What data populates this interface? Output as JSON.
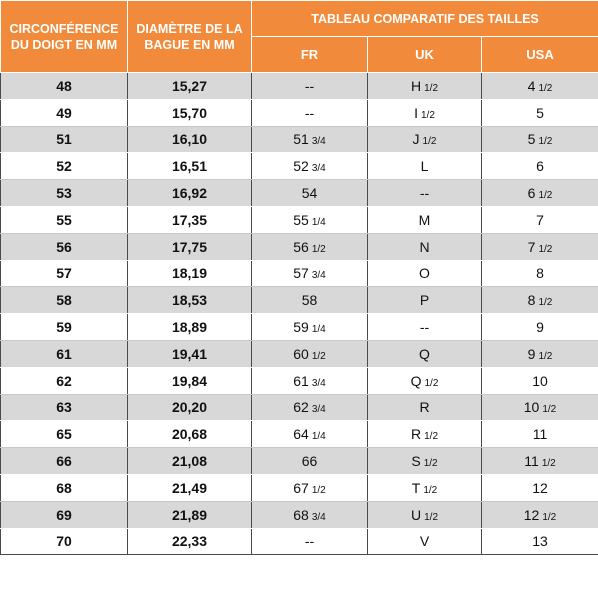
{
  "header": {
    "circumference": "CIRCONFÉRENCE DU DOIGT EN MM",
    "diameter": "DIAMÈTRE DE LA BAGUE EN MM",
    "comparison": "TABLEAU COMPARATIF DES TAILLES",
    "fr": "FR",
    "uk": "UK",
    "usa": "USA"
  },
  "rows": [
    {
      "circ": "48",
      "diam": "15,27",
      "fr": "--",
      "fr_frac": "",
      "uk": "H",
      "uk_frac": "1/2",
      "usa": "4",
      "usa_frac": "1/2"
    },
    {
      "circ": "49",
      "diam": "15,70",
      "fr": "--",
      "fr_frac": "",
      "uk": "I",
      "uk_frac": "1/2",
      "usa": "5",
      "usa_frac": ""
    },
    {
      "circ": "51",
      "diam": "16,10",
      "fr": "51",
      "fr_frac": "3/4",
      "uk": "J",
      "uk_frac": "1/2",
      "usa": "5",
      "usa_frac": "1/2"
    },
    {
      "circ": "52",
      "diam": "16,51",
      "fr": "52",
      "fr_frac": "3/4",
      "uk": "L",
      "uk_frac": "",
      "usa": "6",
      "usa_frac": ""
    },
    {
      "circ": "53",
      "diam": "16,92",
      "fr": "54",
      "fr_frac": "",
      "uk": "--",
      "uk_frac": "",
      "usa": "6",
      "usa_frac": "1/2"
    },
    {
      "circ": "55",
      "diam": "17,35",
      "fr": "55",
      "fr_frac": "1/4",
      "uk": "M",
      "uk_frac": "",
      "usa": "7",
      "usa_frac": ""
    },
    {
      "circ": "56",
      "diam": "17,75",
      "fr": "56",
      "fr_frac": "1/2",
      "uk": "N",
      "uk_frac": "",
      "usa": "7",
      "usa_frac": "1/2"
    },
    {
      "circ": "57",
      "diam": "18,19",
      "fr": "57",
      "fr_frac": "3/4",
      "uk": "O",
      "uk_frac": "",
      "usa": "8",
      "usa_frac": ""
    },
    {
      "circ": "58",
      "diam": "18,53",
      "fr": "58",
      "fr_frac": "",
      "uk": "P",
      "uk_frac": "",
      "usa": "8",
      "usa_frac": "1/2"
    },
    {
      "circ": "59",
      "diam": "18,89",
      "fr": "59",
      "fr_frac": "1/4",
      "uk": "--",
      "uk_frac": "",
      "usa": "9",
      "usa_frac": ""
    },
    {
      "circ": "61",
      "diam": "19,41",
      "fr": "60",
      "fr_frac": "1/2",
      "uk": "Q",
      "uk_frac": "",
      "usa": "9",
      "usa_frac": "1/2"
    },
    {
      "circ": "62",
      "diam": "19,84",
      "fr": "61",
      "fr_frac": "3/4",
      "uk": "Q",
      "uk_frac": "1/2",
      "usa": "10",
      "usa_frac": ""
    },
    {
      "circ": "63",
      "diam": "20,20",
      "fr": "62",
      "fr_frac": "3/4",
      "uk": "R",
      "uk_frac": "",
      "usa": "10",
      "usa_frac": "1/2"
    },
    {
      "circ": "65",
      "diam": "20,68",
      "fr": "64",
      "fr_frac": "1/4",
      "uk": "R",
      "uk_frac": "1/2",
      "usa": "11",
      "usa_frac": ""
    },
    {
      "circ": "66",
      "diam": "21,08",
      "fr": "66",
      "fr_frac": "",
      "uk": "S",
      "uk_frac": "1/2",
      "usa": "11",
      "usa_frac": "1/2"
    },
    {
      "circ": "68",
      "diam": "21,49",
      "fr": "67",
      "fr_frac": "1/2",
      "uk": "T",
      "uk_frac": "1/2",
      "usa": "12",
      "usa_frac": ""
    },
    {
      "circ": "69",
      "diam": "21,89",
      "fr": "68",
      "fr_frac": "3/4",
      "uk": "U",
      "uk_frac": "1/2",
      "usa": "12",
      "usa_frac": "1/2"
    },
    {
      "circ": "70",
      "diam": "22,33",
      "fr": "--",
      "fr_frac": "",
      "uk": "V",
      "uk_frac": "",
      "usa": "13",
      "usa_frac": ""
    }
  ],
  "colors": {
    "header_bg": "#f18a3a",
    "header_text": "#ffffff",
    "stripe": "#d8d8d8",
    "border": "#4a4a4a"
  }
}
